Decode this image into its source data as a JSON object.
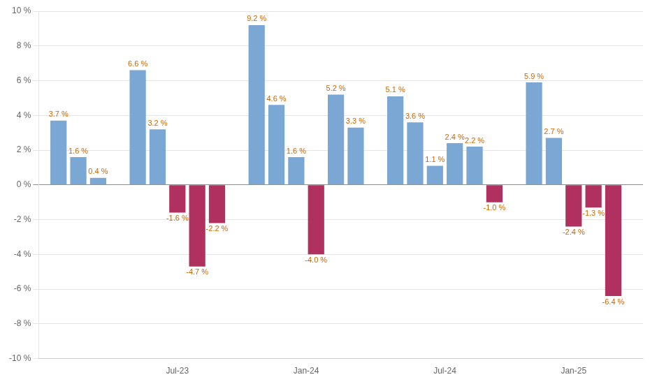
{
  "chart_data": {
    "type": "bar",
    "x": [
      1,
      2,
      3,
      5,
      6,
      7,
      8,
      9,
      11,
      12,
      13,
      14,
      15,
      16,
      18,
      19,
      20,
      21,
      22,
      23,
      25,
      26,
      27,
      28,
      29
    ],
    "values": [
      3.7,
      1.6,
      0.4,
      6.6,
      3.2,
      -1.6,
      -4.7,
      -2.2,
      9.2,
      4.6,
      1.6,
      -4.0,
      5.2,
      3.3,
      5.1,
      3.6,
      1.1,
      2.4,
      2.2,
      -1.0,
      5.9,
      2.7,
      -2.4,
      -1.3,
      -6.4
    ],
    "value_labels": [
      "3.7 %",
      "1.6 %",
      "0.4 %",
      "6.6 %",
      "3.2 %",
      "-1.6 %",
      "-4.7 %",
      "-2.2 %",
      "9.2 %",
      "4.6 %",
      "1.6 %",
      "-4.0 %",
      "5.2 %",
      "3.3 %",
      "5.1 %",
      "3.6 %",
      "1.1 %",
      "2.4 %",
      "2.2 %",
      "-1.0 %",
      "5.9 %",
      "2.7 %",
      "-2.4 %",
      "-1.3 %",
      "-6.4 %"
    ],
    "colors": [
      "#7ba7d4",
      "#7ba7d4",
      "#7ba7d4",
      "#7ba7d4",
      "#7ba7d4",
      "#b03060",
      "#b03060",
      "#b03060",
      "#7ba7d4",
      "#7ba7d4",
      "#7ba7d4",
      "#b03060",
      "#7ba7d4",
      "#7ba7d4",
      "#7ba7d4",
      "#7ba7d4",
      "#7ba7d4",
      "#7ba7d4",
      "#7ba7d4",
      "#b03060",
      "#7ba7d4",
      "#7ba7d4",
      "#b03060",
      "#b03060",
      "#b03060"
    ],
    "data_labels": true,
    "xlim": [
      0.0,
      30.5
    ],
    "xticks": [
      {
        "value": 7.0,
        "label": "Jul-23"
      },
      {
        "value": 13.5,
        "label": "Jan-24"
      },
      {
        "value": 20.5,
        "label": "Jul-24"
      },
      {
        "value": 27.0,
        "label": "Jan-25"
      }
    ],
    "ylim": [
      -10,
      10
    ],
    "yticks": [
      {
        "value": -10,
        "label": "-10 %"
      },
      {
        "value": -8,
        "label": "-8 %"
      },
      {
        "value": -6,
        "label": "-6 %"
      },
      {
        "value": -4,
        "label": "-4 %"
      },
      {
        "value": -2,
        "label": "-2 %"
      },
      {
        "value": 0,
        "label": "0 %"
      },
      {
        "value": 2,
        "label": "2 %"
      },
      {
        "value": 4,
        "label": "4 %"
      },
      {
        "value": 6,
        "label": "6 %"
      },
      {
        "value": 8,
        "label": "8 %"
      },
      {
        "value": 10,
        "label": "10 %"
      }
    ],
    "grid": "y"
  }
}
